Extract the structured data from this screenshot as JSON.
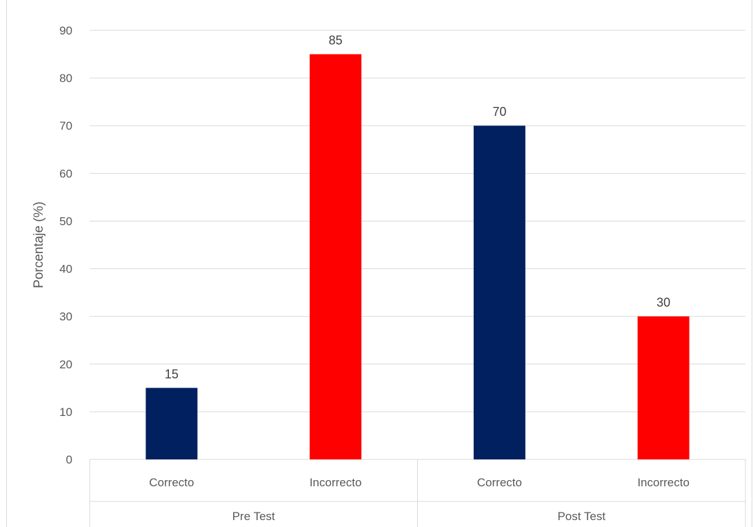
{
  "chart_data": {
    "type": "bar",
    "ylabel": "Porcentaje (%)",
    "xlabel": "",
    "ylim": [
      0,
      90
    ],
    "yticks": [
      0,
      10,
      20,
      30,
      40,
      50,
      60,
      70,
      80,
      90
    ],
    "grid": true,
    "groups": [
      {
        "name": "Pre Test",
        "categories": [
          "Correcto",
          "Incorrecto"
        ]
      },
      {
        "name": "Post Test",
        "categories": [
          "Correcto",
          "Incorrecto"
        ]
      }
    ],
    "bars": [
      {
        "group": "Pre Test",
        "category": "Correcto",
        "value": 15,
        "color": "#002060"
      },
      {
        "group": "Pre Test",
        "category": "Incorrecto",
        "value": 85,
        "color": "#ff0000"
      },
      {
        "group": "Post Test",
        "category": "Correcto",
        "value": 70,
        "color": "#002060"
      },
      {
        "group": "Post Test",
        "category": "Incorrecto",
        "value": 30,
        "color": "#ff0000"
      }
    ],
    "data_labels": true,
    "legend": "none"
  }
}
